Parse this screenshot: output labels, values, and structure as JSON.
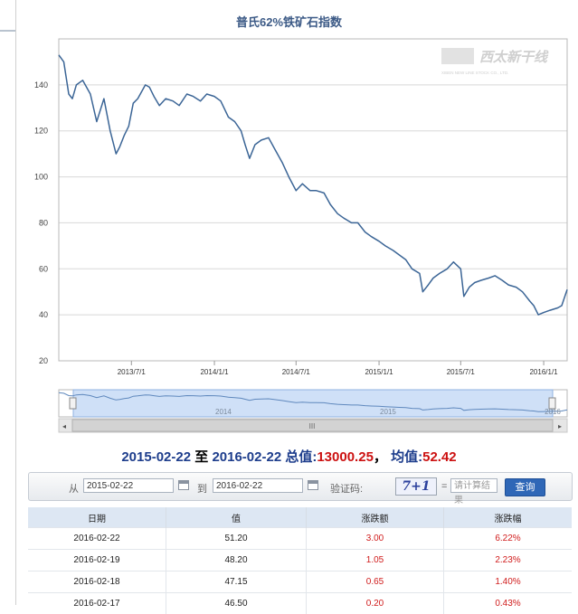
{
  "chart": {
    "title": "普氏62%铁矿石指数",
    "watermark": "西太新干线",
    "watermark_sub": "XIBEN NEW LINE STOCK CO., LTD.",
    "navigator_labels": [
      "2014",
      "2015",
      "2016"
    ],
    "scroll_grip": "III"
  },
  "chart_data": {
    "type": "line",
    "title": "普氏62%铁矿石指数",
    "x_ticks": [
      "2013/7/1",
      "2014/1/1",
      "2014/7/1",
      "2015/1/1",
      "2015/7/1",
      "2016/1/1"
    ],
    "y_ticks": [
      20,
      40,
      60,
      80,
      100,
      120,
      140
    ],
    "ylim": [
      20,
      160
    ],
    "xlim": [
      "2013-01-21",
      "2016-02-22"
    ],
    "grid": true,
    "series": [
      {
        "x": [
          "2013-01-21",
          "2013-02-01",
          "2013-02-12",
          "2013-02-20",
          "2013-03-01",
          "2013-03-15",
          "2013-04-01",
          "2013-04-15",
          "2013-05-01",
          "2013-05-15",
          "2013-05-28",
          "2013-06-05",
          "2013-06-15",
          "2013-06-25",
          "2013-07-05",
          "2013-07-15",
          "2013-08-01",
          "2013-08-10",
          "2013-08-20",
          "2013-09-01",
          "2013-09-15",
          "2013-10-01",
          "2013-10-15",
          "2013-11-01",
          "2013-11-15",
          "2013-12-01",
          "2013-12-15",
          "2014-01-01",
          "2014-01-15",
          "2014-02-01",
          "2014-02-15",
          "2014-03-01",
          "2014-03-10",
          "2014-03-20",
          "2014-04-01",
          "2014-04-15",
          "2014-05-01",
          "2014-05-15",
          "2014-06-01",
          "2014-06-15",
          "2014-07-01",
          "2014-07-15",
          "2014-08-01",
          "2014-08-15",
          "2014-09-01",
          "2014-09-15",
          "2014-10-01",
          "2014-10-15",
          "2014-11-01",
          "2014-11-15",
          "2014-12-01",
          "2014-12-15",
          "2015-01-01",
          "2015-01-15",
          "2015-02-01",
          "2015-02-15",
          "2015-03-01",
          "2015-03-15",
          "2015-04-01",
          "2015-04-08",
          "2015-04-20",
          "2015-05-01",
          "2015-05-15",
          "2015-06-01",
          "2015-06-15",
          "2015-07-01",
          "2015-07-08",
          "2015-07-20",
          "2015-08-01",
          "2015-08-15",
          "2015-09-01",
          "2015-09-15",
          "2015-10-01",
          "2015-10-15",
          "2015-11-01",
          "2015-11-15",
          "2015-12-01",
          "2015-12-10",
          "2015-12-20",
          "2016-01-01",
          "2016-01-15",
          "2016-02-01",
          "2016-02-10",
          "2016-02-22"
        ],
        "values": [
          153,
          150,
          136,
          134,
          140,
          142,
          136,
          124,
          134,
          120,
          110,
          113,
          118,
          122,
          132,
          134,
          140,
          139,
          135,
          131,
          134,
          133,
          131,
          136,
          135,
          133,
          136,
          135,
          133,
          126,
          124,
          120,
          114,
          108,
          114,
          116,
          117,
          112,
          106,
          100,
          94,
          97,
          94,
          94,
          93,
          88,
          84,
          82,
          80,
          80,
          76,
          74,
          72,
          70,
          68,
          66,
          64,
          60,
          58,
          50,
          53,
          56,
          58,
          60,
          63,
          60,
          48,
          52,
          54,
          55,
          56,
          57,
          55,
          53,
          52,
          50,
          46,
          44,
          40,
          41,
          42,
          43,
          44,
          51
        ]
      }
    ]
  },
  "summary": {
    "from": "2015-02-22",
    "to_word": "至",
    "to": "2016-02-22",
    "total_label": "总值:",
    "total": "13000.25",
    "comma": "，",
    "avg_label": "均值:",
    "avg": "52.42"
  },
  "filter": {
    "from_label": "从",
    "from_value": "2015-02-22",
    "to_label": "到",
    "to_value": "2016-02-22",
    "captcha_label": "验证码:",
    "captcha_text": "7+1",
    "equals": "=",
    "captcha_placeholder": "请计算结果",
    "query_button": "查询"
  },
  "table": {
    "headers": [
      "日期",
      "值",
      "涨跌额",
      "涨跌幅"
    ],
    "rows": [
      [
        "2016-02-22",
        "51.20",
        "3.00",
        "6.22%"
      ],
      [
        "2016-02-19",
        "48.20",
        "1.05",
        "2.23%"
      ],
      [
        "2016-02-18",
        "47.15",
        "0.65",
        "1.40%"
      ],
      [
        "2016-02-17",
        "46.50",
        "0.20",
        "0.43%"
      ]
    ]
  },
  "colors": {
    "line": "#3b6596",
    "header_blue": "#3c5a86",
    "up_red": "#d01c1c",
    "button_blue": "#2f67b7"
  }
}
